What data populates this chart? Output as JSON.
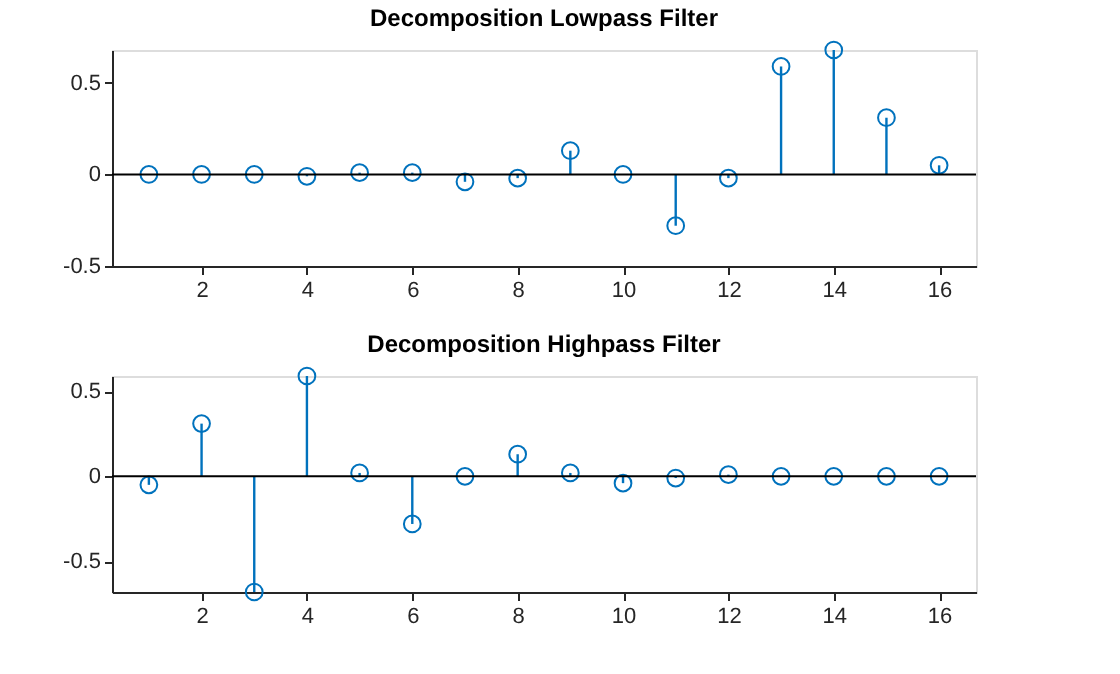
{
  "chart_data": [
    {
      "type": "lollipop",
      "title": "Decomposition Lowpass Filter",
      "x": [
        1,
        2,
        3,
        4,
        5,
        6,
        7,
        8,
        9,
        10,
        11,
        12,
        13,
        14,
        15,
        16
      ],
      "series": [
        {
          "color": "#0072bd",
          "values": [
            0,
            0,
            0,
            -0.01,
            0.01,
            0.01,
            -0.04,
            -0.02,
            0.13,
            0,
            -0.28,
            -0.02,
            0.59,
            0.68,
            0.31,
            0.05
          ]
        }
      ],
      "xlim": [
        0.3,
        16.7
      ],
      "xticks": [
        2,
        4,
        6,
        8,
        10,
        12,
        14,
        16
      ],
      "ylim": [
        -0.5,
        0.68
      ],
      "yticks": [
        -0.5,
        0,
        0.5
      ],
      "ref_lines": [
        {
          "axis": "y",
          "value": 0,
          "color": "#000000"
        }
      ],
      "marker": "circle",
      "grid": false
    },
    {
      "type": "lollipop",
      "title": "Decomposition Highpass Filter",
      "x": [
        1,
        2,
        3,
        4,
        5,
        6,
        7,
        8,
        9,
        10,
        11,
        12,
        13,
        14,
        15,
        16
      ],
      "series": [
        {
          "color": "#0072bd",
          "values": [
            -0.05,
            0.31,
            -0.68,
            0.59,
            0.02,
            -0.28,
            0,
            0.13,
            0.02,
            -0.04,
            -0.01,
            0.01,
            0,
            0,
            0,
            0
          ]
        }
      ],
      "xlim": [
        0.3,
        16.7
      ],
      "xticks": [
        2,
        4,
        6,
        8,
        10,
        12,
        14,
        16
      ],
      "ylim": [
        -0.68,
        0.59
      ],
      "yticks": [
        -0.5,
        0,
        0.5
      ],
      "ref_lines": [
        {
          "axis": "y",
          "value": 0,
          "color": "#000000"
        }
      ],
      "marker": "circle",
      "grid": false
    }
  ]
}
